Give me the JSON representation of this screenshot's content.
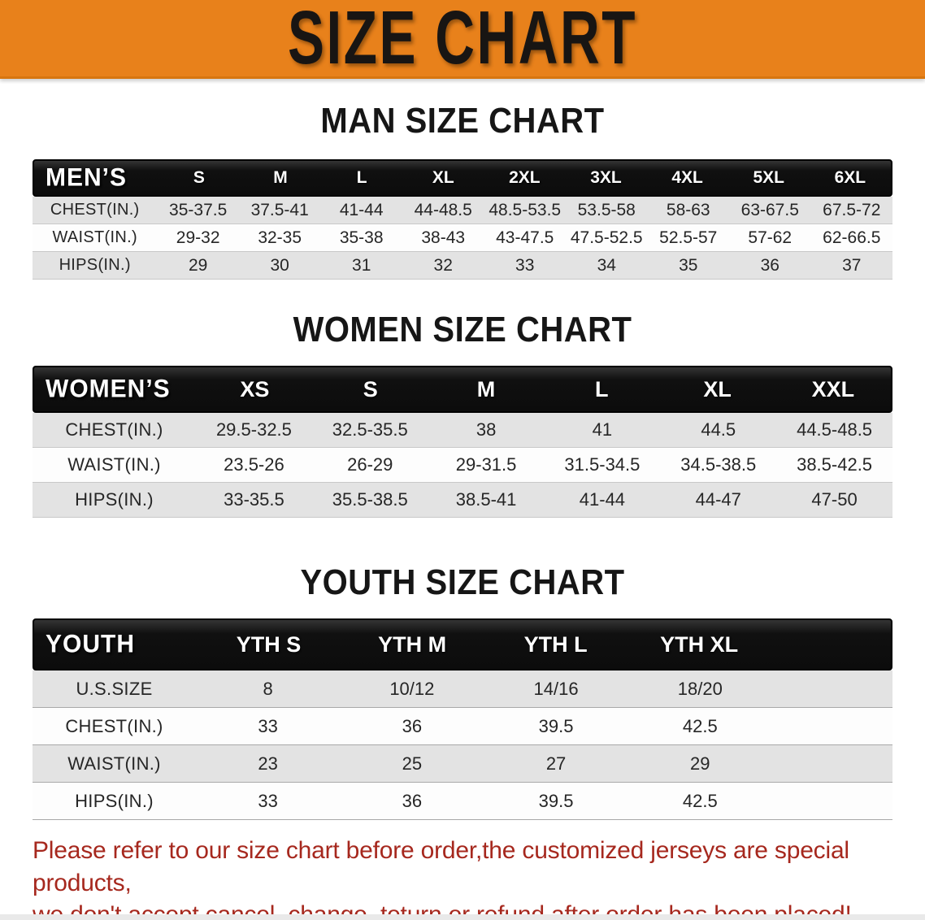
{
  "banner": {
    "title": "SIZE CHART"
  },
  "colors": {
    "banner_bg": "#e8811b",
    "banner_text": "#181513",
    "table_header_bg": "#0c0c0c",
    "table_header_text": "#ffffff",
    "row_shaded_bg": "#e3e3e3",
    "footer_text": "#a6281e"
  },
  "sections": [
    {
      "heading": "MAN SIZE CHART",
      "table": {
        "header_label": "MEN’S",
        "columns": [
          "S",
          "M",
          "L",
          "XL",
          "2XL",
          "3XL",
          "4XL",
          "5XL",
          "6XL"
        ],
        "rows": [
          {
            "label": "CHEST(IN.)",
            "values": [
              "35-37.5",
              "37.5-41",
              "41-44",
              "44-48.5",
              "48.5-53.5",
              "53.5-58",
              "58-63",
              "63-67.5",
              "67.5-72"
            ]
          },
          {
            "label": "WAIST(IN.)",
            "values": [
              "29-32",
              "32-35",
              "35-38",
              "38-43",
              "43-47.5",
              "47.5-52.5",
              "52.5-57",
              "57-62",
              "62-66.5"
            ]
          },
          {
            "label": "HIPS(IN.)",
            "values": [
              "29",
              "30",
              "31",
              "32",
              "33",
              "34",
              "35",
              "36",
              "37"
            ]
          }
        ]
      }
    },
    {
      "heading": "WOMEN SIZE CHART",
      "table": {
        "header_label": "WOMEN’S",
        "columns": [
          "XS",
          "S",
          "M",
          "L",
          "XL",
          "XXL"
        ],
        "rows": [
          {
            "label": "CHEST(IN.)",
            "values": [
              "29.5-32.5",
              "32.5-35.5",
              "38",
              "41",
              "44.5",
              "44.5-48.5"
            ]
          },
          {
            "label": "WAIST(IN.)",
            "values": [
              "23.5-26",
              "26-29",
              "29-31.5",
              "31.5-34.5",
              "34.5-38.5",
              "38.5-42.5"
            ]
          },
          {
            "label": "HIPS(IN.)",
            "values": [
              "33-35.5",
              "35.5-38.5",
              "38.5-41",
              "41-44",
              "44-47",
              "47-50"
            ]
          }
        ]
      }
    },
    {
      "heading": "YOUTH SIZE CHART",
      "table": {
        "header_label": "YOUTH",
        "columns": [
          "YTH S",
          "YTH M",
          "YTH L",
          "YTH XL"
        ],
        "rows": [
          {
            "label": "U.S.SIZE",
            "values": [
              "8",
              "10/12",
              "14/16",
              "18/20"
            ]
          },
          {
            "label": "CHEST(IN.)",
            "values": [
              "33",
              "36",
              "39.5",
              "42.5"
            ]
          },
          {
            "label": "WAIST(IN.)",
            "values": [
              "23",
              "25",
              "27",
              "29"
            ]
          },
          {
            "label": "HIPS(IN.)",
            "values": [
              "33",
              "36",
              "39.5",
              "42.5"
            ]
          }
        ]
      }
    }
  ],
  "footer_note": {
    "lines": [
      "Please refer to our size chart before order,the customized jerseys are special products,",
      "we don't accept cancel, change, teturn or refund after order has been placed!"
    ]
  }
}
